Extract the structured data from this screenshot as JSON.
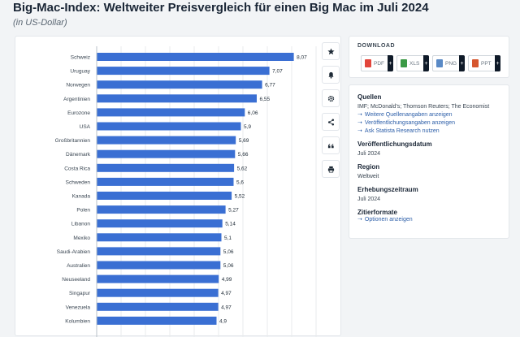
{
  "page": {
    "title": "Big-Mac-Index: Weltweiter Preisvergleich für einen Big Mac im Juli 2024",
    "subtitle": "(in US-Dollar)"
  },
  "toolbar": {
    "icons": [
      "star-icon",
      "bell-icon",
      "gear-icon",
      "share-icon",
      "quote-icon",
      "print-icon"
    ]
  },
  "download": {
    "title": "DOWNLOAD",
    "buttons": [
      {
        "label": "PDF",
        "color": "#e2463c"
      },
      {
        "label": "XLS",
        "color": "#3b9a46"
      },
      {
        "label": "PNG",
        "color": "#5a8ac6"
      },
      {
        "label": "PPT",
        "color": "#d6562e"
      }
    ],
    "plus": "+"
  },
  "info": {
    "sources_label": "Quellen",
    "sources_text": "IMF; McDonald's; Thomson Reuters; The Economist",
    "sources_links": [
      "Weitere Quellenangaben anzeigen",
      "Veröffentlichungsangaben anzeigen",
      "Ask Statista Research nutzen"
    ],
    "published_label": "Veröffentlichungsdatum",
    "published_value": "Juli 2024",
    "region_label": "Region",
    "region_value": "Weltweit",
    "period_label": "Erhebungszeitraum",
    "period_value": "Juli 2024",
    "cite_label": "Zitierformate",
    "cite_link": "Optionen anzeigen",
    "arrow": "➝"
  },
  "chart_data": {
    "type": "bar",
    "orientation": "horizontal",
    "categories": [
      "Schweiz",
      "Uruguay",
      "Norwegen",
      "Argentinien",
      "Eurozone",
      "USA",
      "Großbritannien",
      "Dänemark",
      "Costa Rica",
      "Schweden",
      "Kanada",
      "Polen",
      "Libanon",
      "Mexiko",
      "Saudi-Arabien",
      "Australien",
      "Neuseeland",
      "Singapur",
      "Venezuela",
      "Kolumbien"
    ],
    "values": [
      8.07,
      7.07,
      6.77,
      6.55,
      6.06,
      5.9,
      5.69,
      5.66,
      5.62,
      5.6,
      5.52,
      5.27,
      5.14,
      5.1,
      5.06,
      5.06,
      4.99,
      4.97,
      4.97,
      4.9
    ],
    "value_labels": [
      "8,07",
      "7,07",
      "6,77",
      "6,55",
      "6,06",
      "5,9",
      "5,69",
      "5,66",
      "5,62",
      "5,6",
      "5,52",
      "5,27",
      "5,14",
      "5,1",
      "5,06",
      "5,06",
      "4,99",
      "4,97",
      "4,97",
      "4,9"
    ],
    "xlim": [
      0,
      9
    ],
    "bar_color": "#3a6fd3",
    "grid": true
  }
}
